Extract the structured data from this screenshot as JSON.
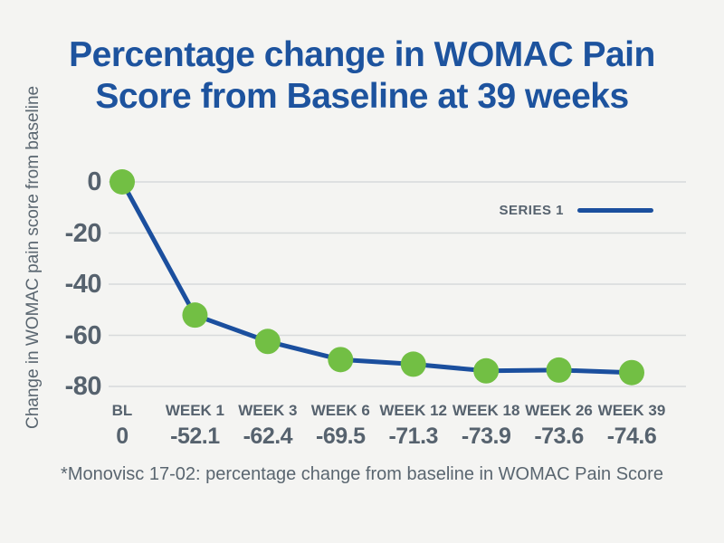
{
  "title": {
    "line1": "Percentage change in WOMAC Pain",
    "line2": "Score from Baseline at 39 weeks"
  },
  "legend": {
    "series_label": "SERIES 1"
  },
  "footnote": "*Monovisc 17-02: percentage change from baseline in WOMAC Pain Score",
  "colors": {
    "background": "#f4f4f2",
    "title_blue": "#1d539e",
    "line_blue": "#1b4f9e",
    "marker_green": "#72bf44",
    "axis_text_gray": "#56626e",
    "gridline_gray": "#d7dadb"
  },
  "chart_data": {
    "type": "line",
    "title": "Percentage change in WOMAC Pain Score from Baseline at 39 weeks",
    "ylabel": "Change in WOMAC pain score from baseline",
    "xlabel": "",
    "categories": [
      "BL",
      "WEEK 1",
      "WEEK 3",
      "WEEK 6",
      "WEEK 12",
      "WEEK 18",
      "WEEK 26",
      "WEEK 39"
    ],
    "series": [
      {
        "name": "SERIES 1",
        "values": [
          0,
          -52.1,
          -62.4,
          -69.5,
          -71.3,
          -73.9,
          -73.6,
          -74.6
        ]
      }
    ],
    "value_labels": [
      "0",
      "-52.1",
      "-62.4",
      "-69.5",
      "-71.3",
      "-73.9",
      "-73.6",
      "-74.6"
    ],
    "yticks": [
      0,
      -20,
      -40,
      -60,
      -80
    ],
    "ylim": [
      0,
      -80
    ],
    "grid": "horizontal",
    "legend_position": "upper-right",
    "line_color": "#1b4f9e",
    "marker_color": "#72bf44"
  }
}
